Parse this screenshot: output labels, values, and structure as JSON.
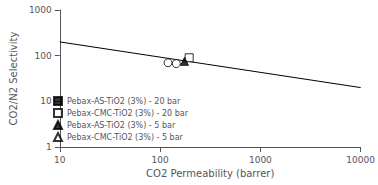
{
  "chart_data": {
    "type": "scatter",
    "xlabel": "CO2 Permeability (barrer)",
    "ylabel": "CO2/N2 Selectivity",
    "log": true,
    "xlim": [
      10,
      10000
    ],
    "ylim": [
      1,
      1000
    ],
    "xticks": [
      10,
      100,
      1000,
      10000
    ],
    "yticks": [
      1,
      10,
      100,
      1000
    ],
    "grid": false,
    "legend": "lower left",
    "series": [
      {
        "type": "line",
        "color": "black",
        "x": [
          10,
          10000
        ],
        "values": [
          200,
          20
        ]
      },
      {
        "type": "scatter",
        "marker": "circle",
        "color": "white",
        "x": [
          120
        ],
        "values": [
          70
        ]
      },
      {
        "type": "scatter",
        "marker": "circle",
        "color": "white",
        "x": [
          145
        ],
        "values": [
          67
        ]
      },
      {
        "type": "scatter",
        "name": "Pebax-AS-TiO2 (3%) - 20 bar",
        "marker": "square",
        "color": "black",
        "x": [],
        "values": []
      },
      {
        "type": "scatter",
        "name": "Pebax-CMC-TiO2 (3%) - 20 bar",
        "marker": "square",
        "color": "white",
        "x": [
          195
        ],
        "values": [
          90
        ]
      },
      {
        "type": "scatter",
        "name": "Pebax-AS-TiO2 (3%) - 5 bar",
        "marker": "triangle",
        "color": "black",
        "x": [
          175
        ],
        "values": [
          75
        ]
      },
      {
        "type": "scatter",
        "name": "Pebax-CMC-TiO2 (3%) - 5 bar",
        "marker": "triangle",
        "color": "white",
        "x": [],
        "values": []
      }
    ]
  }
}
